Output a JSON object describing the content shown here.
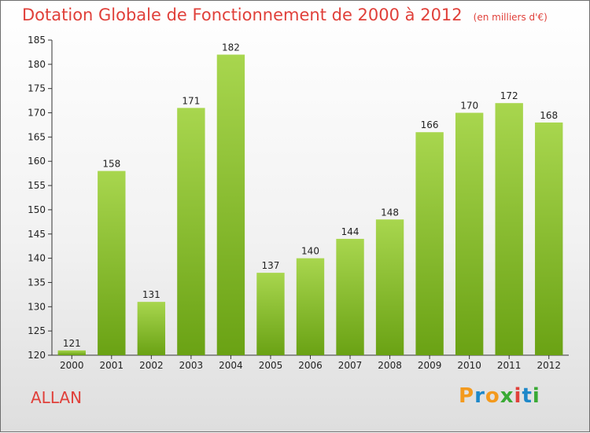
{
  "chart_data": {
    "type": "bar",
    "title": "Dotation Globale de Fonctionnement de 2000 à 2012",
    "subtitle": "(en milliers d'€)",
    "xlabel": "",
    "ylabel": "",
    "categories": [
      "2000",
      "2001",
      "2002",
      "2003",
      "2004",
      "2005",
      "2006",
      "2007",
      "2008",
      "2009",
      "2010",
      "2011",
      "2012"
    ],
    "values": [
      121,
      158,
      131,
      171,
      182,
      137,
      140,
      144,
      148,
      166,
      170,
      172,
      168
    ],
    "ylim": [
      120,
      185
    ],
    "yticks": [
      120,
      125,
      130,
      135,
      140,
      145,
      150,
      155,
      160,
      165,
      170,
      175,
      180,
      185
    ],
    "grid": false,
    "data_labels": true,
    "bar_color_top": "#a8d64e",
    "bar_color_bottom": "#6aa214"
  },
  "location": "ALLAN",
  "brand": {
    "letters": [
      "P",
      "r",
      "o",
      "x",
      "i",
      "t",
      "i"
    ],
    "colors": [
      "#f39a1e",
      "#1e88c9",
      "#f39a1e",
      "#3aaa35",
      "#e0403a",
      "#1e88c9",
      "#3aaa35"
    ]
  },
  "colors": {
    "title": "#e0403a",
    "axis": "#333333"
  }
}
